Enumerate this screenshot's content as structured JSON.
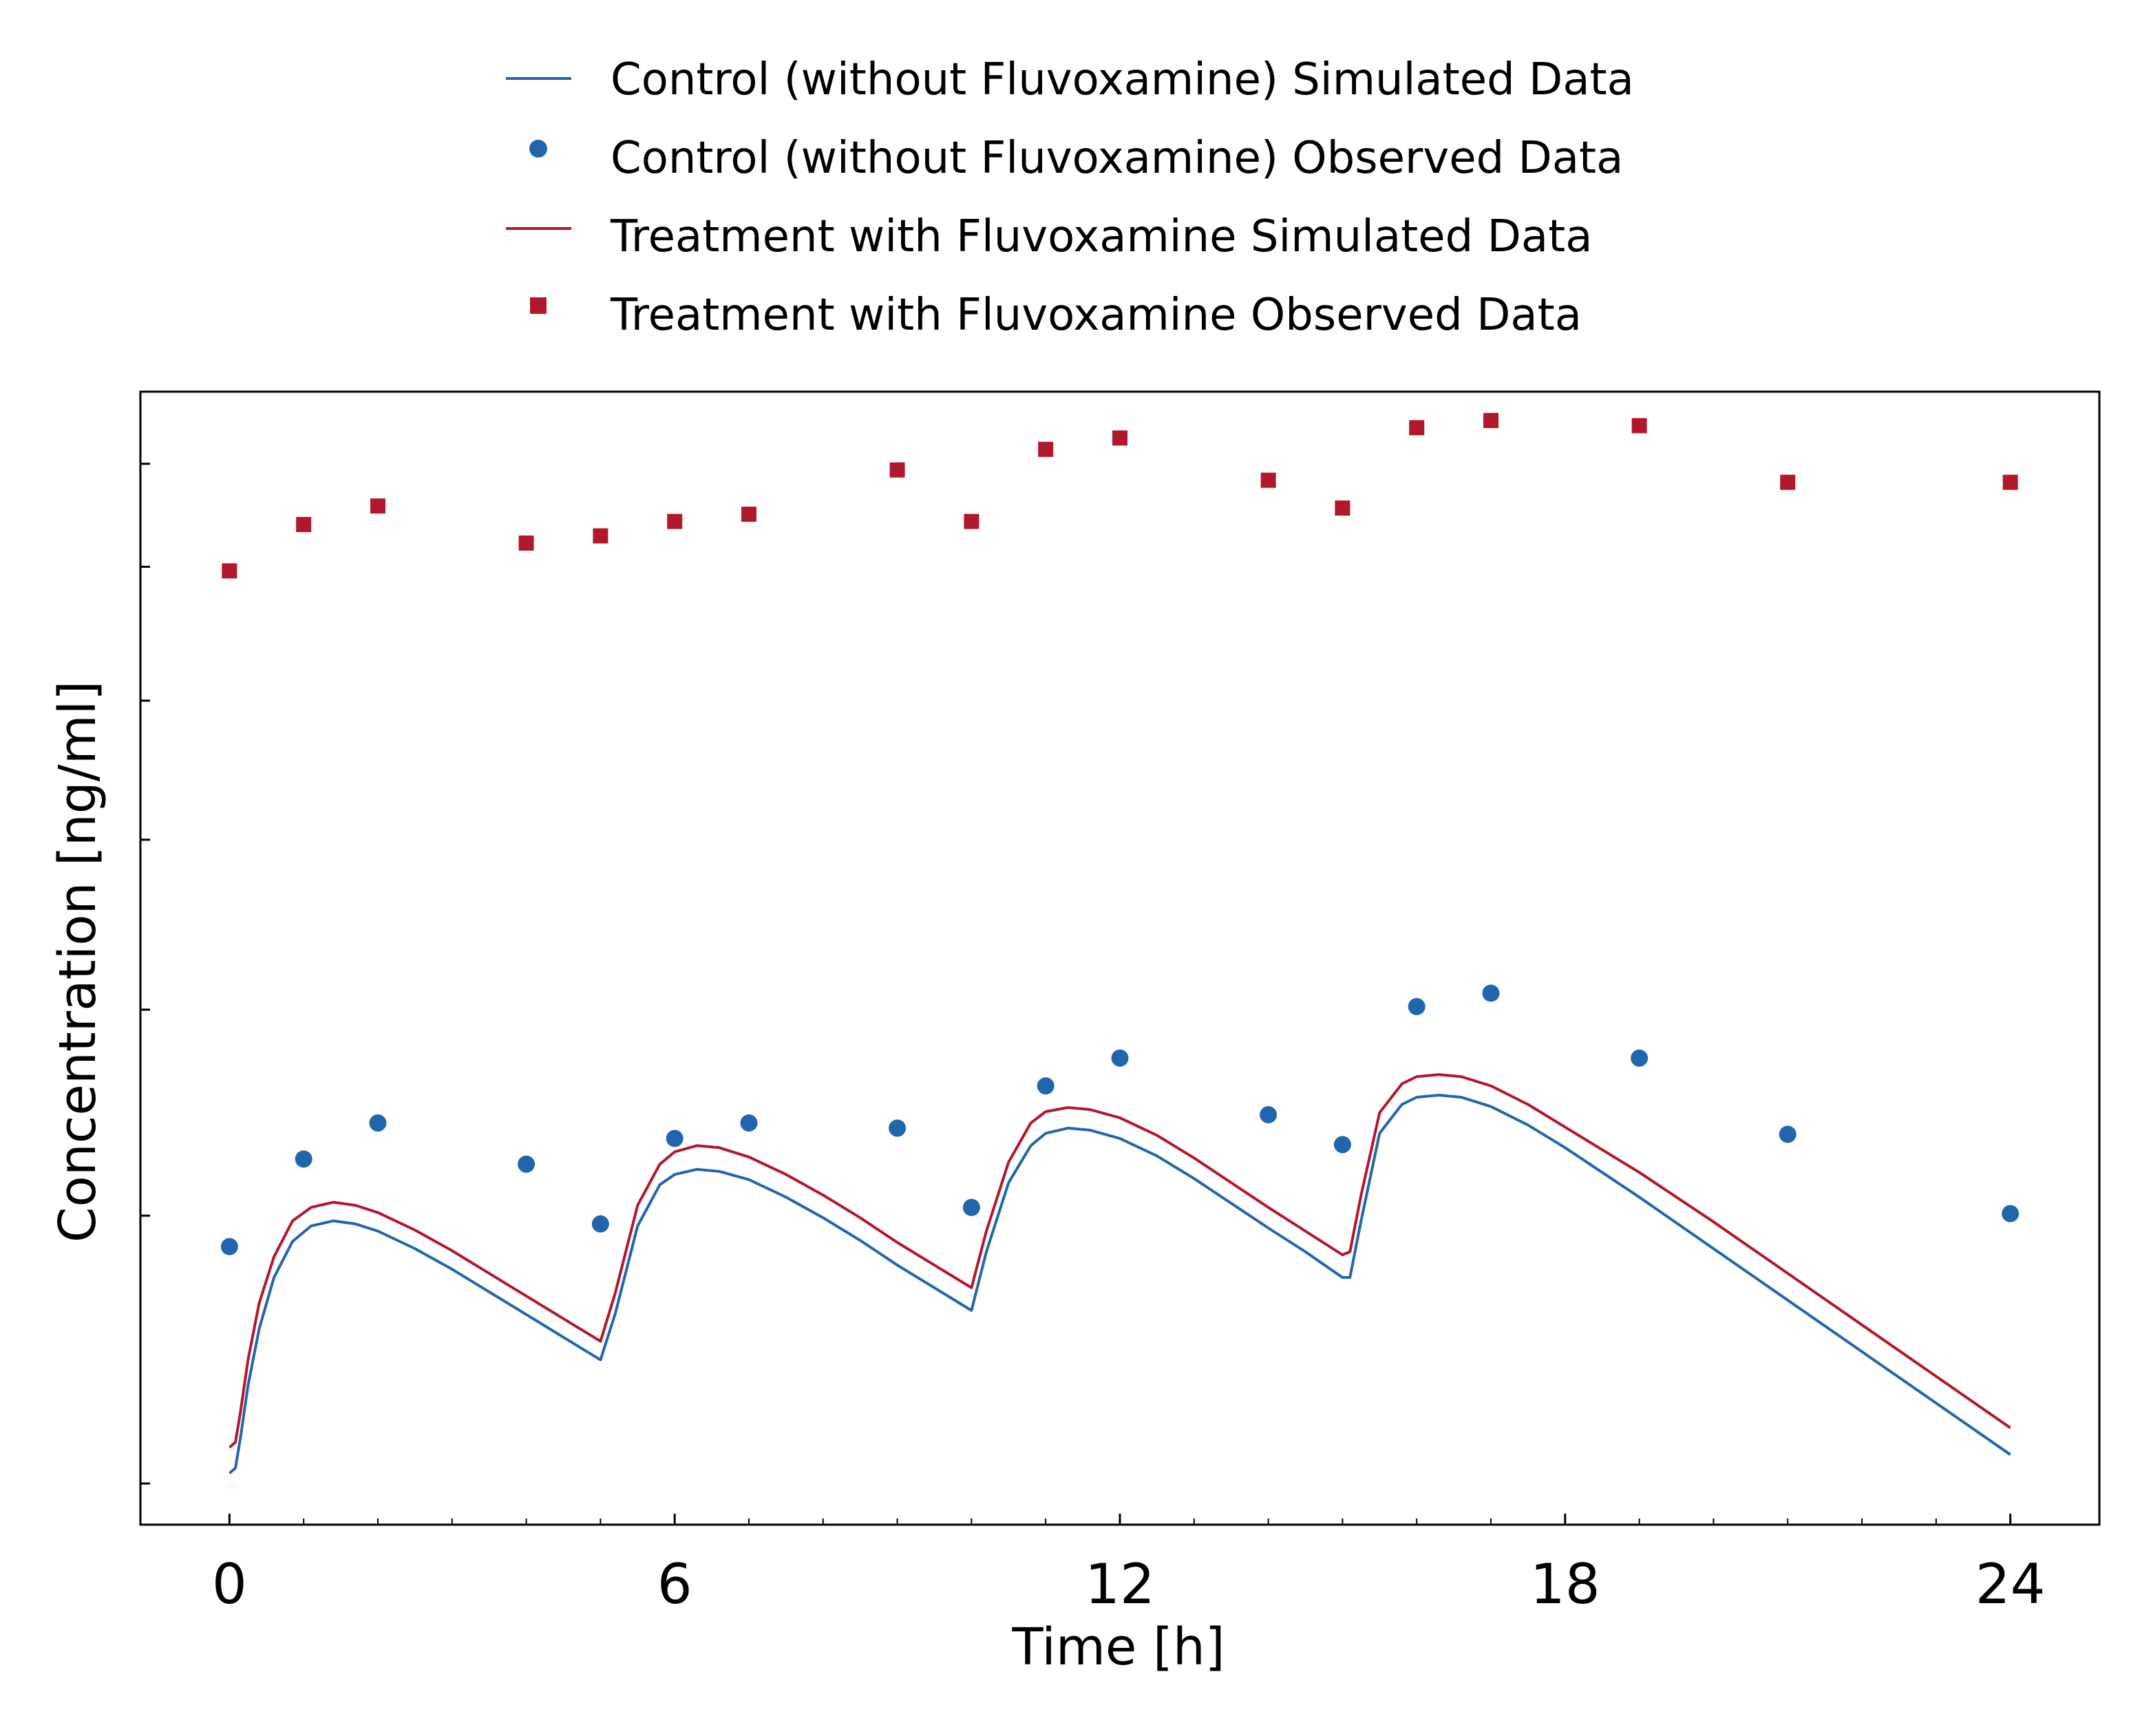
{
  "chart_data": {
    "type": "line",
    "xlabel": "Time [h]",
    "ylabel": "Concentration [ng/ml]",
    "xlim": [
      -1.2,
      25.2
    ],
    "ylim": [
      -0.4,
      10.6
    ],
    "x_ticks": [
      0,
      6,
      12,
      18,
      24
    ],
    "x_tick_labels": [
      "0",
      "6",
      "12",
      "18",
      "24"
    ],
    "x_minor_ticks": [
      1,
      2,
      3,
      4,
      5,
      7,
      8,
      9,
      10,
      11,
      13,
      14,
      15,
      16,
      17,
      19,
      20,
      21,
      22,
      23
    ],
    "y_tick_values": [
      0.0,
      2.6,
      4.6,
      6.25,
      7.6,
      8.9,
      9.9
    ],
    "y_tick_labels_shown": false,
    "grid": false,
    "legend_position": "top-center, above plot",
    "series": [
      {
        "name": "Control (without Fluvoxamine) Simulated Data",
        "kind": "line",
        "color": "#2166ac",
        "x": [
          0.0,
          0.08,
          0.15,
          0.25,
          0.4,
          0.6,
          0.85,
          1.1,
          1.4,
          1.7,
          2.0,
          2.5,
          3.0,
          3.5,
          4.0,
          4.5,
          5.0,
          5.2,
          5.5,
          5.8,
          6.0,
          6.3,
          6.6,
          7.0,
          7.5,
          8.0,
          8.5,
          9.0,
          9.5,
          10.0,
          10.2,
          10.5,
          10.8,
          11.0,
          11.3,
          11.6,
          12.0,
          12.5,
          13.0,
          13.5,
          14.0,
          14.5,
          15.0,
          15.1,
          15.25,
          15.5,
          15.8,
          16.0,
          16.3,
          16.6,
          17.0,
          17.5,
          18.0,
          19.0,
          20.0,
          21.0,
          22.0,
          23.0,
          24.0
        ],
        "y": [
          0.1,
          0.15,
          0.45,
          0.95,
          1.5,
          2.0,
          2.35,
          2.5,
          2.55,
          2.52,
          2.45,
          2.28,
          2.08,
          1.86,
          1.64,
          1.42,
          1.2,
          1.65,
          2.5,
          2.9,
          3.0,
          3.05,
          3.03,
          2.95,
          2.78,
          2.58,
          2.36,
          2.12,
          1.9,
          1.68,
          2.25,
          2.92,
          3.28,
          3.4,
          3.45,
          3.43,
          3.35,
          3.18,
          2.96,
          2.72,
          2.48,
          2.25,
          2.0,
          2.0,
          2.55,
          3.4,
          3.68,
          3.75,
          3.77,
          3.75,
          3.66,
          3.48,
          3.26,
          2.78,
          2.28,
          1.78,
          1.28,
          0.78,
          0.28
        ]
      },
      {
        "name": "Control (without Fluvoxamine) Observed Data",
        "kind": "scatter",
        "marker": "circle",
        "color": "#2166ac",
        "x": [
          0,
          1,
          2,
          4,
          5,
          6,
          7,
          9,
          10,
          11,
          12,
          14,
          15,
          16,
          17,
          19,
          21,
          24
        ],
        "y": [
          2.3,
          3.15,
          3.5,
          3.1,
          2.52,
          3.35,
          3.5,
          3.45,
          2.68,
          3.86,
          4.13,
          3.58,
          3.29,
          4.63,
          4.76,
          4.13,
          3.39,
          2.62
        ]
      },
      {
        "name": "Treatment with Fluvoxamine Simulated Data",
        "kind": "line",
        "color": "#b2182b",
        "x": [
          0.0,
          0.08,
          0.15,
          0.25,
          0.4,
          0.6,
          0.85,
          1.1,
          1.4,
          1.7,
          2.0,
          2.5,
          3.0,
          3.5,
          4.0,
          4.5,
          5.0,
          5.2,
          5.5,
          5.8,
          6.0,
          6.3,
          6.6,
          7.0,
          7.5,
          8.0,
          8.5,
          9.0,
          9.5,
          10.0,
          10.2,
          10.5,
          10.8,
          11.0,
          11.3,
          11.6,
          12.0,
          12.5,
          13.0,
          13.5,
          14.0,
          14.5,
          15.0,
          15.1,
          15.25,
          15.5,
          15.8,
          16.0,
          16.3,
          16.6,
          17.0,
          17.5,
          18.0,
          19.0,
          20.0,
          21.0,
          22.0,
          23.0,
          24.0
        ],
        "y": [
          0.35,
          0.4,
          0.7,
          1.2,
          1.75,
          2.2,
          2.55,
          2.68,
          2.73,
          2.7,
          2.63,
          2.46,
          2.26,
          2.04,
          1.82,
          1.6,
          1.38,
          1.85,
          2.7,
          3.1,
          3.22,
          3.28,
          3.26,
          3.17,
          3.0,
          2.8,
          2.58,
          2.34,
          2.12,
          1.9,
          2.45,
          3.12,
          3.5,
          3.61,
          3.65,
          3.63,
          3.55,
          3.38,
          3.16,
          2.92,
          2.68,
          2.45,
          2.22,
          2.25,
          2.8,
          3.6,
          3.88,
          3.95,
          3.97,
          3.95,
          3.86,
          3.68,
          3.46,
          3.02,
          2.54,
          2.04,
          1.54,
          1.04,
          0.54
        ]
      },
      {
        "name": "Treatment with Fluvoxamine Observed Data",
        "kind": "scatter",
        "marker": "square",
        "color": "#b2182b",
        "x": [
          0,
          1,
          2,
          4,
          5,
          6,
          7,
          9,
          10,
          11,
          12,
          14,
          15,
          16,
          17,
          19,
          21,
          24
        ],
        "y": [
          8.86,
          9.31,
          9.49,
          9.13,
          9.2,
          9.34,
          9.41,
          9.84,
          9.34,
          10.04,
          10.15,
          9.74,
          9.47,
          10.25,
          10.32,
          10.27,
          9.72,
          9.72
        ]
      }
    ]
  }
}
